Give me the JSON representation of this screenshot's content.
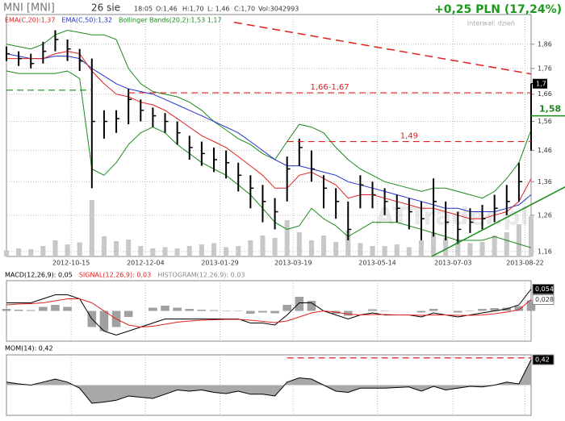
{
  "header": {
    "symbol": "MNI [MNI]",
    "date": "26 sie",
    "time": "18:05",
    "open": "O:1,46",
    "high": "H:1,70",
    "low": "L: 1,46",
    "close": "C:1,70",
    "volume": "Vol:3042993",
    "change": "+0,25 PLN (17,24%)",
    "interval": "Interwał: dzień",
    "watermark": "ATTrader.pl"
  },
  "chart_data": [
    {
      "type": "ohlc",
      "log": true,
      "grid": true,
      "xlim": [
        0,
        43
      ],
      "ylim": [
        1.147,
        1.99
      ],
      "xticks": [
        {
          "value": 5.3,
          "label": "2012-10-15"
        },
        {
          "value": 11.4,
          "label": "2012-12-04"
        },
        {
          "value": 17.5,
          "label": "2013-01-29"
        },
        {
          "value": 23.5,
          "label": "2013-03-19"
        },
        {
          "value": 30.4,
          "label": "2013-05-14"
        },
        {
          "value": 36.6,
          "label": "2013-07-03"
        },
        {
          "value": 42.5,
          "label": "2013-08-22"
        }
      ],
      "yticks": [
        {
          "value": 1.16,
          "label": "1,16"
        },
        {
          "value": 1.26,
          "label": "1,26"
        },
        {
          "value": 1.36,
          "label": "1,36"
        },
        {
          "value": 1.46,
          "label": "1,46"
        },
        {
          "value": 1.56,
          "label": "1,56"
        },
        {
          "value": 1.66,
          "label": "1,66"
        },
        {
          "value": 1.76,
          "label": "1,76"
        },
        {
          "value": 1.86,
          "label": "1,86"
        }
      ],
      "bar_color": "#000000",
      "high": [
        1.85,
        1.83,
        1.82,
        1.87,
        1.92,
        1.88,
        1.84,
        1.8,
        1.6,
        1.6,
        1.68,
        1.64,
        1.61,
        1.59,
        1.56,
        1.51,
        1.49,
        1.47,
        1.46,
        1.42,
        1.38,
        1.35,
        1.31,
        1.44,
        1.5,
        1.46,
        1.38,
        1.34,
        1.3,
        1.38,
        1.36,
        1.34,
        1.32,
        1.31,
        1.3,
        1.37,
        1.3,
        1.27,
        1.28,
        1.29,
        1.32,
        1.35,
        1.42,
        1.7
      ],
      "low": [
        1.79,
        1.77,
        1.76,
        1.78,
        1.83,
        1.79,
        1.75,
        1.34,
        1.5,
        1.52,
        1.55,
        1.56,
        1.54,
        1.52,
        1.48,
        1.43,
        1.41,
        1.39,
        1.37,
        1.33,
        1.28,
        1.24,
        1.22,
        1.3,
        1.41,
        1.36,
        1.28,
        1.25,
        1.19,
        1.28,
        1.28,
        1.26,
        1.24,
        1.22,
        1.19,
        1.2,
        1.19,
        1.18,
        1.21,
        1.22,
        1.24,
        1.26,
        1.3,
        1.46
      ],
      "close": [
        1.82,
        1.8,
        1.78,
        1.83,
        1.88,
        1.84,
        1.79,
        1.56,
        1.56,
        1.57,
        1.64,
        1.6,
        1.58,
        1.56,
        1.52,
        1.47,
        1.45,
        1.43,
        1.42,
        1.38,
        1.34,
        1.3,
        1.27,
        1.4,
        1.47,
        1.4,
        1.34,
        1.3,
        1.22,
        1.35,
        1.32,
        1.3,
        1.28,
        1.27,
        1.25,
        1.3,
        1.24,
        1.22,
        1.24,
        1.25,
        1.28,
        1.3,
        1.36,
        1.7
      ],
      "volume_color": "#c8c8c8",
      "volume": [
        150,
        200,
        180,
        260,
        400,
        300,
        350,
        1400,
        500,
        380,
        420,
        260,
        200,
        230,
        200,
        260,
        300,
        330,
        230,
        260,
        400,
        520,
        460,
        900,
        600,
        400,
        520,
        360,
        650,
        330,
        260,
        260,
        300,
        230,
        400,
        600,
        460,
        400,
        330,
        360,
        520,
        600,
        800,
        1000
      ],
      "series": [
        {
          "name": "EMA(C,20):1,37",
          "color": "#e02020",
          "values": [
            1.8,
            1.8,
            1.8,
            1.8,
            1.82,
            1.83,
            1.82,
            1.75,
            1.7,
            1.66,
            1.65,
            1.63,
            1.62,
            1.6,
            1.57,
            1.54,
            1.51,
            1.49,
            1.47,
            1.44,
            1.41,
            1.38,
            1.34,
            1.34,
            1.38,
            1.39,
            1.37,
            1.35,
            1.31,
            1.32,
            1.32,
            1.31,
            1.3,
            1.29,
            1.28,
            1.28,
            1.27,
            1.26,
            1.25,
            1.25,
            1.26,
            1.27,
            1.3,
            1.37
          ]
        },
        {
          "name": "EMA(C,50):1,32",
          "color": "#2030d0",
          "values": [
            1.82,
            1.81,
            1.8,
            1.8,
            1.81,
            1.81,
            1.8,
            1.76,
            1.73,
            1.7,
            1.68,
            1.67,
            1.66,
            1.64,
            1.62,
            1.6,
            1.58,
            1.56,
            1.54,
            1.52,
            1.49,
            1.46,
            1.43,
            1.41,
            1.41,
            1.4,
            1.39,
            1.38,
            1.36,
            1.35,
            1.34,
            1.33,
            1.32,
            1.31,
            1.3,
            1.29,
            1.28,
            1.28,
            1.27,
            1.27,
            1.27,
            1.28,
            1.29,
            1.32
          ]
        },
        {
          "name": "Bollinger Bands(20,2):1,53 1,17",
          "color": "#1a8a1a",
          "upper": [
            1.86,
            1.85,
            1.84,
            1.86,
            1.9,
            1.92,
            1.91,
            1.9,
            1.9,
            1.88,
            1.76,
            1.7,
            1.67,
            1.66,
            1.65,
            1.63,
            1.6,
            1.56,
            1.53,
            1.5,
            1.48,
            1.45,
            1.43,
            1.49,
            1.55,
            1.54,
            1.52,
            1.47,
            1.43,
            1.4,
            1.38,
            1.36,
            1.35,
            1.34,
            1.33,
            1.34,
            1.34,
            1.33,
            1.32,
            1.31,
            1.33,
            1.37,
            1.42,
            1.53
          ],
          "lower": [
            1.75,
            1.74,
            1.74,
            1.74,
            1.74,
            1.75,
            1.72,
            1.4,
            1.38,
            1.42,
            1.48,
            1.52,
            1.54,
            1.52,
            1.48,
            1.45,
            1.42,
            1.4,
            1.38,
            1.35,
            1.32,
            1.28,
            1.24,
            1.22,
            1.23,
            1.28,
            1.25,
            1.23,
            1.2,
            1.22,
            1.24,
            1.24,
            1.24,
            1.23,
            1.22,
            1.21,
            1.2,
            1.19,
            1.19,
            1.19,
            1.2,
            1.19,
            1.18,
            1.17
          ]
        }
      ],
      "levels": [
        {
          "value": 1.665,
          "label": "1,66-1,67",
          "from": 10,
          "color": "#e02020"
        },
        {
          "value": 1.49,
          "label": "1,49",
          "from": 23,
          "color": "#e02020"
        },
        {
          "value": 1.675,
          "from": 0,
          "to": 7,
          "color": "#1a8a1a"
        }
      ],
      "trendlines": [
        {
          "points": [
            [
              18.65,
              1.955
            ],
            [
              43,
              1.738
            ]
          ],
          "color": "#e02020",
          "dashed": true
        },
        {
          "points": [
            [
              34.85,
              1.147
            ],
            [
              45.8,
              1.344
            ]
          ],
          "color": "#1a8a1a",
          "dashed": false
        }
      ],
      "last_label": {
        "value": 1.7,
        "label": "1,7"
      },
      "marker": {
        "value": 1.58,
        "label": "1,58",
        "color": "#1a8a1a"
      }
    },
    {
      "type": "macd",
      "grid": true,
      "xlim": [
        0,
        43
      ],
      "ylim": [
        -0.075,
        0.075
      ],
      "yticks": [
        {
          "value": 0.054,
          "label": "0,054"
        },
        {
          "value": 0.028,
          "label": "0,028"
        }
      ],
      "series": [
        {
          "name": "MACD(12,26,9): 0,05",
          "color": "#000000",
          "style": "line",
          "values": [
            0.02,
            0.02,
            0.02,
            0.03,
            0.04,
            0.04,
            0.03,
            -0.02,
            -0.05,
            -0.06,
            -0.05,
            -0.04,
            -0.03,
            -0.02,
            -0.02,
            -0.02,
            -0.02,
            -0.02,
            -0.02,
            -0.02,
            -0.03,
            -0.03,
            -0.035,
            -0.01,
            0.02,
            0.02,
            0.0,
            -0.01,
            -0.02,
            -0.01,
            -0.005,
            -0.01,
            -0.01,
            -0.01,
            -0.015,
            -0.005,
            -0.01,
            -0.015,
            -0.01,
            -0.005,
            0.0,
            0.005,
            0.015,
            0.054
          ]
        },
        {
          "name": "SIGNAL(12,26,9): 0,03",
          "color": "#e02020",
          "style": "line",
          "values": [
            0.015,
            0.017,
            0.018,
            0.02,
            0.025,
            0.03,
            0.03,
            0.02,
            0.0,
            -0.02,
            -0.035,
            -0.04,
            -0.038,
            -0.033,
            -0.028,
            -0.025,
            -0.023,
            -0.022,
            -0.021,
            -0.021,
            -0.023,
            -0.026,
            -0.029,
            -0.025,
            -0.015,
            -0.005,
            0.0,
            -0.003,
            -0.008,
            -0.01,
            -0.009,
            -0.009,
            -0.01,
            -0.01,
            -0.011,
            -0.01,
            -0.01,
            -0.011,
            -0.011,
            -0.01,
            -0.007,
            -0.003,
            0.003,
            0.028
          ]
        },
        {
          "name": "HISTOGRAM(12,26,9): 0,03",
          "color": "#a0a0a0",
          "style": "bars",
          "values": [
            0.005,
            0.003,
            0.002,
            0.01,
            0.015,
            0.01,
            0,
            -0.04,
            -0.05,
            -0.04,
            -0.015,
            0,
            0.008,
            0.013,
            0.008,
            0.005,
            0.003,
            0.002,
            0.001,
            0.001,
            -0.007,
            -0.004,
            -0.006,
            0.015,
            0.035,
            0.025,
            0,
            -0.007,
            -0.012,
            0,
            0.004,
            -0.001,
            0,
            0,
            -0.004,
            0.005,
            0,
            -0.004,
            0.001,
            0.005,
            0.007,
            0.008,
            0.012,
            0.026
          ]
        }
      ]
    },
    {
      "type": "line",
      "grid": true,
      "xlim": [
        0,
        43
      ],
      "ylim": [
        -0.5,
        0.5
      ],
      "yticks": [
        {
          "value": 0.42,
          "label": "0,42"
        }
      ],
      "series": [
        {
          "name": "MOM(14): 0,42",
          "color": "#000000",
          "fill": "#a8a8a8",
          "values": [
            0.05,
            0.02,
            0.0,
            0.05,
            0.1,
            0.05,
            -0.05,
            -0.3,
            -0.28,
            -0.25,
            -0.18,
            -0.2,
            -0.22,
            -0.15,
            -0.08,
            -0.1,
            -0.08,
            -0.12,
            -0.14,
            -0.1,
            -0.15,
            -0.15,
            -0.18,
            0.05,
            0.12,
            0.1,
            0.0,
            -0.1,
            -0.12,
            -0.05,
            -0.05,
            -0.05,
            -0.04,
            -0.03,
            -0.1,
            -0.02,
            -0.08,
            -0.05,
            -0.02,
            -0.03,
            0.0,
            0.05,
            0.02,
            0.42
          ]
        }
      ],
      "levels": [
        {
          "value": 0.45,
          "from": 23,
          "color": "#e02020"
        }
      ]
    }
  ]
}
